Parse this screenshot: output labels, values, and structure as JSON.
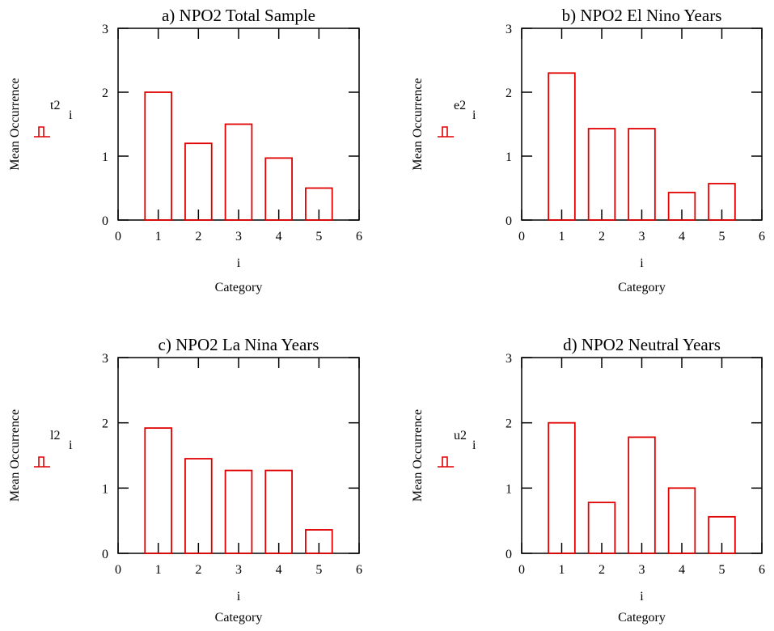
{
  "colors": {
    "bar": "#e00000",
    "axis": "#000000",
    "background": "#ffffff"
  },
  "chart_data": [
    {
      "type": "bar",
      "title": "a) NPO2 Total Sample",
      "xlabel_var": "i",
      "xlabel": "Category",
      "ylabel": "Mean Occurrence",
      "legend_label": "t2",
      "legend_sub": "i",
      "x": [
        1,
        2,
        3,
        4,
        5
      ],
      "values": [
        2.0,
        1.2,
        1.5,
        0.97,
        0.5
      ],
      "xlim": [
        0,
        6
      ],
      "ylim": [
        0,
        3
      ],
      "xticks": [
        0,
        1,
        2,
        3,
        4,
        5,
        6
      ],
      "yticks": [
        0,
        1,
        2,
        3
      ]
    },
    {
      "type": "bar",
      "title": "b) NPO2 El Nino Years",
      "xlabel_var": "i",
      "xlabel": "Category",
      "ylabel": "Mean Occurrence",
      "legend_label": "e2",
      "legend_sub": "i",
      "x": [
        1,
        2,
        3,
        4,
        5
      ],
      "values": [
        2.3,
        1.43,
        1.43,
        0.43,
        0.57
      ],
      "xlim": [
        0,
        6
      ],
      "ylim": [
        0,
        3
      ],
      "xticks": [
        0,
        1,
        2,
        3,
        4,
        5,
        6
      ],
      "yticks": [
        0,
        1,
        2,
        3
      ]
    },
    {
      "type": "bar",
      "title": "c) NPO2 La Nina Years",
      "xlabel_var": "i",
      "xlabel": "Category",
      "ylabel": "Mean Occurrence",
      "legend_label": "l2",
      "legend_sub": "i",
      "x": [
        1,
        2,
        3,
        4,
        5
      ],
      "values": [
        1.92,
        1.45,
        1.27,
        1.27,
        0.36
      ],
      "xlim": [
        0,
        6
      ],
      "ylim": [
        0,
        3
      ],
      "xticks": [
        0,
        1,
        2,
        3,
        4,
        5,
        6
      ],
      "yticks": [
        0,
        1,
        2,
        3
      ]
    },
    {
      "type": "bar",
      "title": "d) NPO2 Neutral Years",
      "xlabel_var": "i",
      "xlabel": "Category",
      "ylabel": "Mean Occurrence",
      "legend_label": "u2",
      "legend_sub": "i",
      "x": [
        1,
        2,
        3,
        4,
        5
      ],
      "values": [
        2.0,
        0.78,
        1.78,
        1.0,
        0.56
      ],
      "xlim": [
        0,
        6
      ],
      "ylim": [
        0,
        3
      ],
      "xticks": [
        0,
        1,
        2,
        3,
        4,
        5,
        6
      ],
      "yticks": [
        0,
        1,
        2,
        3
      ]
    }
  ]
}
